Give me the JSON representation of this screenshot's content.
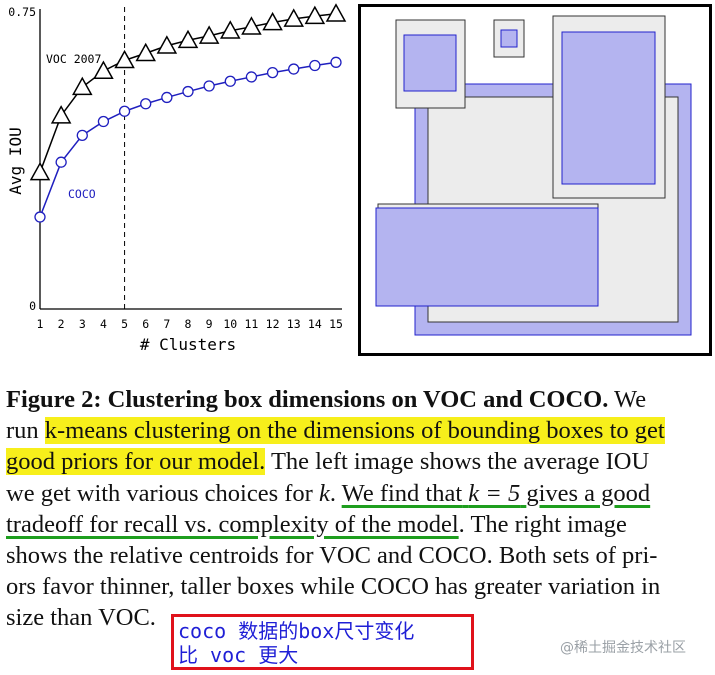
{
  "chart_data": {
    "type": "line",
    "xlabel": "# Clusters",
    "ylabel": "Avg IOU",
    "x": [
      1,
      2,
      3,
      4,
      5,
      6,
      7,
      8,
      9,
      10,
      11,
      12,
      13,
      14,
      15
    ],
    "xlim": [
      1,
      15
    ],
    "ylim": [
      0,
      0.75
    ],
    "ytick_labels": [
      "0",
      "0.75"
    ],
    "marker_line_x": 5,
    "series": [
      {
        "name": "VOC 2007",
        "color": "#000000",
        "marker": "triangle",
        "values": [
          0.346,
          0.49,
          0.562,
          0.603,
          0.63,
          0.648,
          0.667,
          0.681,
          0.692,
          0.705,
          0.715,
          0.726,
          0.735,
          0.742,
          0.748
        ]
      },
      {
        "name": "COCO",
        "color": "#1f1fbf",
        "marker": "circle",
        "values": [
          0.233,
          0.372,
          0.44,
          0.475,
          0.501,
          0.52,
          0.536,
          0.551,
          0.565,
          0.577,
          0.588,
          0.599,
          0.608,
          0.617,
          0.625
        ]
      }
    ]
  },
  "caption": {
    "figure_label": "Figure 2:",
    "bold_title": "Clustering box dimensions on VOC and COCO.",
    "l1_tail": "We",
    "l2_pre": "run",
    "l2_hl": "k-means clustering on the dimensions of bounding boxes to get",
    "l3_hl": "good priors for our model.",
    "l3_tail": "The left image shows the average IOU",
    "l4_pre": "we get with various choices for",
    "l4_k": "k",
    "l4_dot": ".",
    "l4_ul": "We find that",
    "l4_ul_math": "k = 5",
    "l4_ul_tail": "gives a good",
    "l5_ul": "tradeoff for recall vs.  complexity of the model",
    "l5_tail": ".  The right image",
    "l6": "shows the relative centroids for VOC and COCO. Both sets of pri-",
    "l7": "ors favor thinner, taller boxes while COCO has greater variation in",
    "l8": "size than VOC."
  },
  "note": {
    "line1": "coco 数据的box尺寸变化",
    "line2": "比 voc 更大",
    "border_color": "#e0121b",
    "text_color": "#1f1fd6"
  },
  "watermark": "@稀土掘金技术社区"
}
